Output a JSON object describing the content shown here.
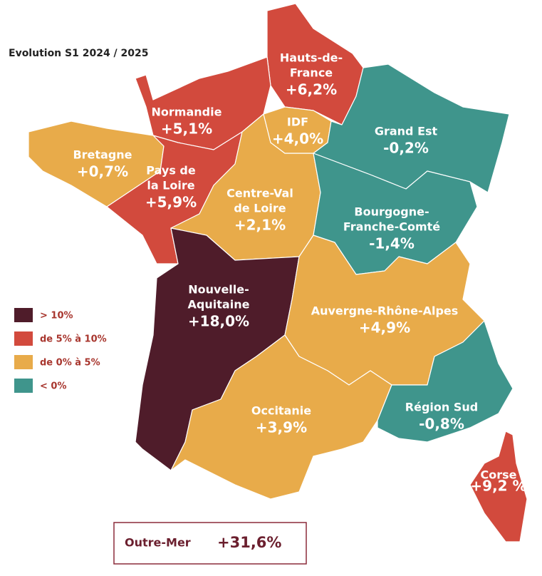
{
  "title": "Evolution S1 2024 / 2025",
  "regions": [
    {
      "name": [
        "Hauts-de-",
        "France"
      ],
      "value": "+6,2%",
      "color": "#d24a3d"
    },
    {
      "name": [
        "Normandie"
      ],
      "value": "+5,1%",
      "color": "#d24a3d"
    },
    {
      "name": [
        "Bretagne"
      ],
      "value": "+0,7%",
      "color": "#e8ab4a"
    },
    {
      "name": [
        "Pays de",
        "la Loire"
      ],
      "value": "+5,9%",
      "color": "#d24a3d"
    },
    {
      "name": [
        "IDF"
      ],
      "value": "+4,0%",
      "color": "#e8ab4a"
    },
    {
      "name": [
        "Centre-Val",
        "de Loire"
      ],
      "value": "+2,1%",
      "color": "#e8ab4a"
    },
    {
      "name": [
        "Grand Est"
      ],
      "value": "-0,2%",
      "color": "#3f958c"
    },
    {
      "name": [
        "Bourgogne-",
        "Franche-Comté"
      ],
      "value": "-1,4%",
      "color": "#3f958c"
    },
    {
      "name": [
        "Nouvelle-",
        "Aquitaine"
      ],
      "value": "+18,0%",
      "color": "#4f1c2a"
    },
    {
      "name": [
        "Auvergne-Rhône-Alpes"
      ],
      "value": "+4,9%",
      "color": "#e8ab4a"
    },
    {
      "name": [
        "Occitanie"
      ],
      "value": "+3,9%",
      "color": "#e8ab4a"
    },
    {
      "name": [
        "Région Sud"
      ],
      "value": "-0,8%",
      "color": "#3f958c"
    },
    {
      "name": [
        "Corse"
      ],
      "value": "+9,2 %",
      "color": "#d24a3d"
    }
  ],
  "legend": [
    {
      "label": "> 10%",
      "color": "#4f1c2a"
    },
    {
      "label": "de 5% à 10%",
      "color": "#d24a3d"
    },
    {
      "label": "de 0% à 5%",
      "color": "#e8ab4a"
    },
    {
      "label": "< 0%",
      "color": "#3f958c"
    }
  ],
  "outre_mer": {
    "name": "Outre-Mer",
    "value": "+31,6%"
  }
}
